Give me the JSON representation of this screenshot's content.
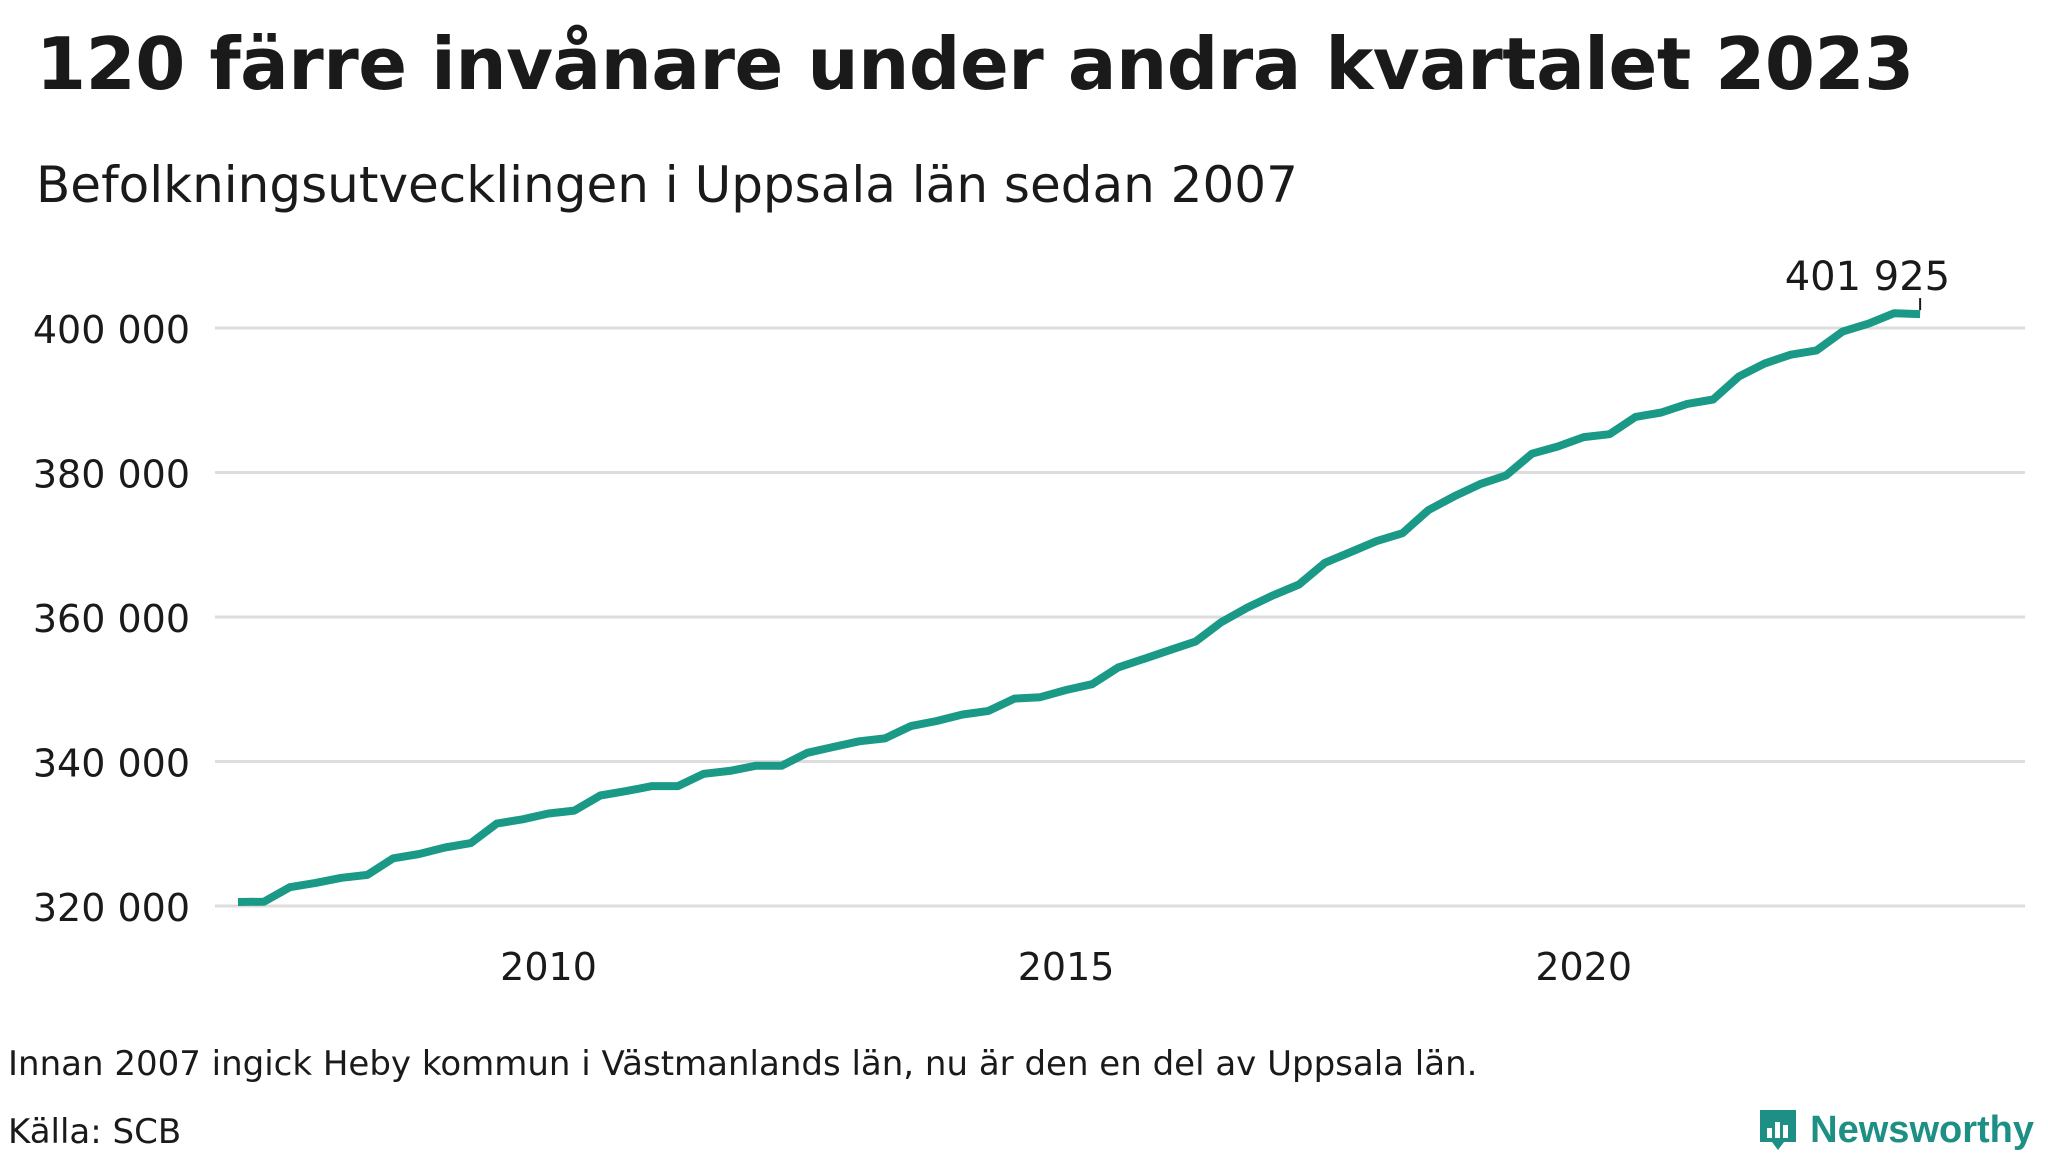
{
  "title": "120 färre invånare under andra kvartalet 2023",
  "subtitle": "Befolkningsutvecklingen i Uppsala län sedan 2007",
  "footnote": "Innan 2007 ingick Heby kommun i Västmanlands län, nu är den en del av Uppsala län.",
  "source": "Källa: SCB",
  "brand": {
    "name": "Newsworthy",
    "icon": "newsworthy-logo-icon",
    "color": "#1e8f84"
  },
  "colors": {
    "line": "#1a9987",
    "grid": "#dddddd",
    "text": "#1a1a1a"
  },
  "chart_data": {
    "type": "line",
    "title": "120 färre invånare under andra kvartalet 2023",
    "xlabel": "",
    "ylabel": "",
    "grid": true,
    "xlim": [
      2007,
      2023.5
    ],
    "ylim": [
      320000,
      400000
    ],
    "x_ticks": [
      2010,
      2015,
      2020
    ],
    "x_tick_labels": [
      "2010",
      "2015",
      "2020"
    ],
    "y_ticks": [
      320000,
      340000,
      360000,
      380000,
      400000
    ],
    "y_tick_labels": [
      "320 000",
      "340 000",
      "360 000",
      "380 000",
      "400 000"
    ],
    "series": [
      {
        "x": [
          2007.0,
          2007.25,
          2007.5,
          2007.75,
          2008.0,
          2008.25,
          2008.5,
          2008.75,
          2009.0,
          2009.25,
          2009.5,
          2009.75,
          2010.0,
          2010.25,
          2010.5,
          2010.75,
          2011.0,
          2011.25,
          2011.5,
          2011.75,
          2012.0,
          2012.25,
          2012.5,
          2012.75,
          2013.0,
          2013.25,
          2013.5,
          2013.75,
          2014.0,
          2014.25,
          2014.5,
          2014.75,
          2015.0,
          2015.25,
          2015.5,
          2015.75,
          2016.0,
          2016.25,
          2016.5,
          2016.75,
          2017.0,
          2017.25,
          2017.5,
          2017.75,
          2018.0,
          2018.25,
          2018.5,
          2018.75,
          2019.0,
          2019.25,
          2019.5,
          2019.75,
          2020.0,
          2020.25,
          2020.5,
          2020.75,
          2021.0,
          2021.25,
          2021.5,
          2021.75,
          2022.0,
          2022.25,
          2022.5,
          2022.75,
          2023.0,
          2023.25
        ],
        "values": [
          320550,
          320600,
          322600,
          323200,
          323900,
          324300,
          326600,
          327200,
          328100,
          328700,
          331400,
          332000,
          332800,
          333200,
          335300,
          335900,
          336600,
          336600,
          338300,
          338700,
          339400,
          339400,
          341200,
          342000,
          342800,
          343200,
          344900,
          345600,
          346500,
          347000,
          348700,
          348900,
          349900,
          350700,
          353000,
          354200,
          355400,
          356600,
          359300,
          361300,
          363000,
          364500,
          367500,
          369000,
          370500,
          371600,
          374800,
          376700,
          378400,
          379600,
          382600,
          383600,
          384900,
          385300,
          387700,
          388300,
          389500,
          390100,
          393300,
          395100,
          396300,
          396900,
          399500,
          400600,
          402045,
          401925
        ]
      }
    ],
    "annotations": [
      {
        "x": 2023.25,
        "y": 401925,
        "text": "401 925"
      }
    ]
  }
}
